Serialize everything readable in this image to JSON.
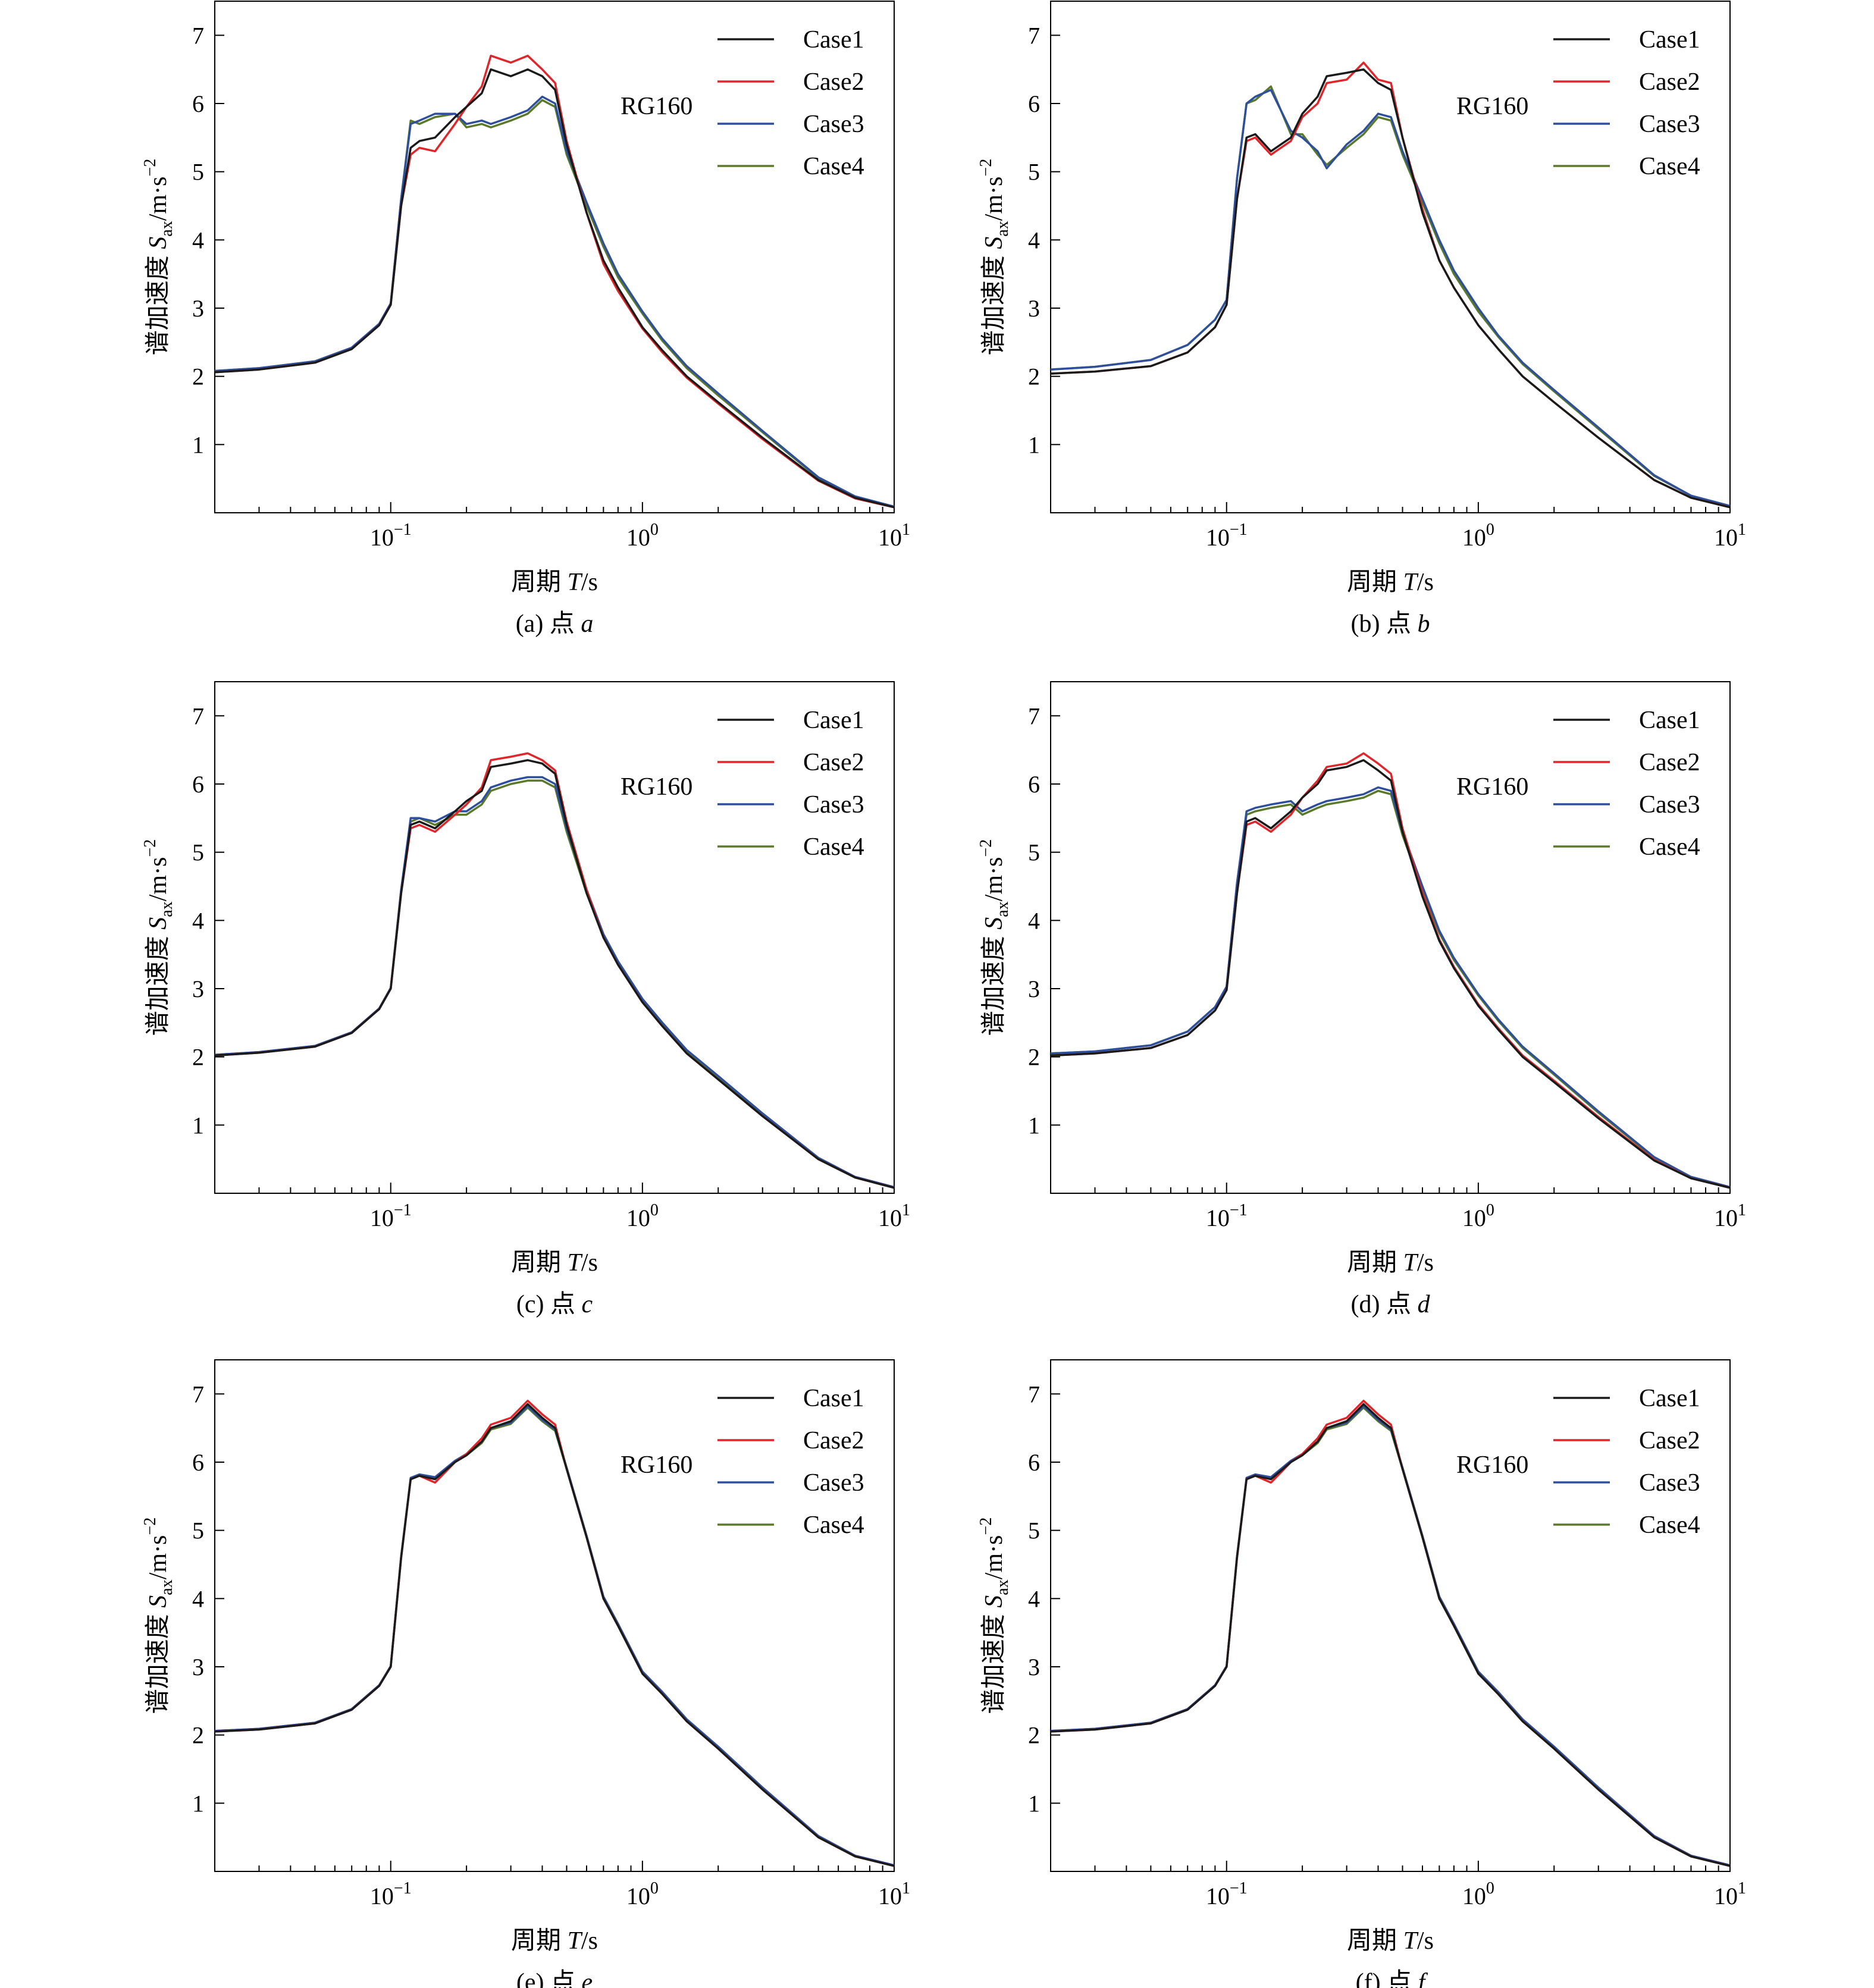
{
  "figure": {
    "ylabel_prefix": "谱加速度 ",
    "ylabel_symbol": "S",
    "ylabel_sub": "ax",
    "ylabel_unit": "/m·s",
    "ylabel_exp": "−2",
    "xlabel_prefix": "周期 ",
    "xlabel_symbol": "T",
    "xlabel_unit": "/s",
    "annotation": "RG160",
    "legend": [
      "Case1",
      "Case2",
      "Case3",
      "Case4"
    ],
    "colors": {
      "Case1": "#1a1a1a",
      "Case2": "#e0262b",
      "Case3": "#2e4f9e",
      "Case4": "#5a7a2a"
    },
    "yticks": [
      1,
      2,
      3,
      4,
      5,
      6,
      7
    ],
    "xticks": [
      {
        "base": "10",
        "exp": "−1",
        "value": 0.1
      },
      {
        "base": "10",
        "exp": "0",
        "value": 1
      },
      {
        "base": "10",
        "exp": "1",
        "value": 10
      }
    ]
  },
  "chart_data": [
    {
      "type": "line",
      "panel": "a",
      "caption_prefix": "(a) 点 ",
      "caption_letter": "a",
      "xscale": "log",
      "xlim": [
        0.02,
        10
      ],
      "ylim": [
        0,
        7.5
      ],
      "grid": false,
      "legend_position": "top-right",
      "x": [
        0.02,
        0.03,
        0.05,
        0.07,
        0.09,
        0.1,
        0.11,
        0.12,
        0.13,
        0.15,
        0.18,
        0.2,
        0.23,
        0.25,
        0.3,
        0.35,
        0.4,
        0.45,
        0.5,
        0.6,
        0.7,
        0.8,
        1.0,
        1.2,
        1.5,
        2.0,
        3.0,
        5.0,
        7.0,
        10.0
      ],
      "series": [
        {
          "name": "Case1",
          "values": [
            2.06,
            2.1,
            2.2,
            2.4,
            2.75,
            3.05,
            4.5,
            5.35,
            5.45,
            5.5,
            5.8,
            5.95,
            6.15,
            6.5,
            6.4,
            6.5,
            6.4,
            6.2,
            5.4,
            4.4,
            3.7,
            3.3,
            2.72,
            2.38,
            2.0,
            1.62,
            1.1,
            0.48,
            0.22,
            0.08
          ]
        },
        {
          "name": "Case2",
          "values": [
            2.06,
            2.1,
            2.2,
            2.4,
            2.75,
            3.05,
            4.5,
            5.25,
            5.35,
            5.3,
            5.7,
            5.95,
            6.25,
            6.7,
            6.6,
            6.7,
            6.5,
            6.3,
            5.45,
            4.4,
            3.65,
            3.25,
            2.7,
            2.35,
            1.98,
            1.6,
            1.08,
            0.47,
            0.21,
            0.08
          ]
        },
        {
          "name": "Case3",
          "values": [
            2.08,
            2.12,
            2.22,
            2.42,
            2.77,
            3.07,
            4.6,
            5.7,
            5.75,
            5.85,
            5.85,
            5.7,
            5.75,
            5.7,
            5.8,
            5.9,
            6.1,
            6.0,
            5.3,
            4.55,
            3.95,
            3.5,
            2.95,
            2.55,
            2.15,
            1.75,
            1.2,
            0.52,
            0.24,
            0.09
          ]
        },
        {
          "name": "Case4",
          "values": [
            2.08,
            2.12,
            2.22,
            2.42,
            2.77,
            3.07,
            4.6,
            5.75,
            5.7,
            5.8,
            5.85,
            5.65,
            5.7,
            5.65,
            5.75,
            5.85,
            6.05,
            5.95,
            5.25,
            4.5,
            3.9,
            3.45,
            2.92,
            2.52,
            2.12,
            1.72,
            1.18,
            0.51,
            0.23,
            0.09
          ]
        }
      ]
    },
    {
      "type": "line",
      "panel": "b",
      "caption_prefix": "(b) 点 ",
      "caption_letter": "b",
      "xscale": "log",
      "xlim": [
        0.02,
        10
      ],
      "ylim": [
        0,
        7.5
      ],
      "grid": false,
      "legend_position": "top-right",
      "x": [
        0.02,
        0.03,
        0.05,
        0.07,
        0.09,
        0.1,
        0.11,
        0.12,
        0.13,
        0.15,
        0.18,
        0.2,
        0.23,
        0.25,
        0.3,
        0.35,
        0.4,
        0.45,
        0.5,
        0.6,
        0.7,
        0.8,
        1.0,
        1.2,
        1.5,
        2.0,
        3.0,
        5.0,
        7.0,
        10.0
      ],
      "series": [
        {
          "name": "Case1",
          "values": [
            2.04,
            2.07,
            2.15,
            2.35,
            2.72,
            3.05,
            4.6,
            5.5,
            5.55,
            5.3,
            5.5,
            5.85,
            6.1,
            6.4,
            6.45,
            6.5,
            6.3,
            6.2,
            5.5,
            4.4,
            3.7,
            3.3,
            2.75,
            2.4,
            2.0,
            1.62,
            1.1,
            0.48,
            0.22,
            0.08
          ]
        },
        {
          "name": "Case2",
          "values": [
            2.04,
            2.07,
            2.15,
            2.35,
            2.72,
            3.05,
            4.6,
            5.45,
            5.5,
            5.25,
            5.45,
            5.8,
            6.0,
            6.3,
            6.35,
            6.6,
            6.35,
            6.3,
            5.5,
            4.45,
            3.7,
            3.3,
            2.75,
            2.4,
            2.0,
            1.62,
            1.1,
            0.48,
            0.22,
            0.08
          ]
        },
        {
          "name": "Case3",
          "values": [
            2.1,
            2.14,
            2.24,
            2.46,
            2.83,
            3.12,
            4.9,
            6.0,
            6.1,
            6.2,
            5.6,
            5.5,
            5.3,
            5.05,
            5.4,
            5.6,
            5.85,
            5.8,
            5.3,
            4.6,
            4.0,
            3.55,
            3.0,
            2.6,
            2.2,
            1.8,
            1.25,
            0.55,
            0.25,
            0.1
          ]
        },
        {
          "name": "Case4",
          "values": [
            2.1,
            2.14,
            2.24,
            2.46,
            2.83,
            3.12,
            4.9,
            6.0,
            6.05,
            6.25,
            5.55,
            5.55,
            5.25,
            5.1,
            5.35,
            5.55,
            5.8,
            5.75,
            5.25,
            4.55,
            3.95,
            3.5,
            2.95,
            2.58,
            2.18,
            1.78,
            1.23,
            0.54,
            0.25,
            0.1
          ]
        }
      ]
    },
    {
      "type": "line",
      "panel": "c",
      "caption_prefix": "(c) 点 ",
      "caption_letter": "c",
      "xscale": "log",
      "xlim": [
        0.02,
        10
      ],
      "ylim": [
        0,
        7.5
      ],
      "grid": false,
      "legend_position": "top-right",
      "x": [
        0.02,
        0.03,
        0.05,
        0.07,
        0.09,
        0.1,
        0.11,
        0.12,
        0.13,
        0.15,
        0.18,
        0.2,
        0.23,
        0.25,
        0.3,
        0.35,
        0.4,
        0.45,
        0.5,
        0.6,
        0.7,
        0.8,
        1.0,
        1.2,
        1.5,
        2.0,
        3.0,
        5.0,
        7.0,
        10.0
      ],
      "series": [
        {
          "name": "Case1",
          "values": [
            2.02,
            2.06,
            2.15,
            2.35,
            2.7,
            3.0,
            4.4,
            5.4,
            5.45,
            5.35,
            5.6,
            5.75,
            5.9,
            6.25,
            6.3,
            6.35,
            6.3,
            6.15,
            5.4,
            4.4,
            3.75,
            3.35,
            2.8,
            2.45,
            2.05,
            1.67,
            1.13,
            0.5,
            0.23,
            0.08
          ]
        },
        {
          "name": "Case2",
          "values": [
            2.02,
            2.06,
            2.15,
            2.35,
            2.7,
            3.0,
            4.4,
            5.35,
            5.4,
            5.3,
            5.55,
            5.7,
            5.95,
            6.35,
            6.4,
            6.45,
            6.35,
            6.2,
            5.45,
            4.45,
            3.75,
            3.35,
            2.8,
            2.45,
            2.05,
            1.67,
            1.13,
            0.5,
            0.23,
            0.08
          ]
        },
        {
          "name": "Case3",
          "values": [
            2.03,
            2.07,
            2.16,
            2.36,
            2.71,
            3.01,
            4.45,
            5.5,
            5.5,
            5.45,
            5.6,
            5.6,
            5.75,
            5.95,
            6.05,
            6.1,
            6.1,
            6.0,
            5.35,
            4.45,
            3.8,
            3.4,
            2.85,
            2.5,
            2.1,
            1.72,
            1.17,
            0.52,
            0.24,
            0.09
          ]
        },
        {
          "name": "Case4",
          "values": [
            2.03,
            2.07,
            2.16,
            2.36,
            2.71,
            3.01,
            4.45,
            5.45,
            5.5,
            5.4,
            5.55,
            5.55,
            5.7,
            5.9,
            6.0,
            6.05,
            6.05,
            5.95,
            5.3,
            4.4,
            3.78,
            3.38,
            2.83,
            2.48,
            2.08,
            1.7,
            1.15,
            0.51,
            0.23,
            0.09
          ]
        }
      ]
    },
    {
      "type": "line",
      "panel": "d",
      "caption_prefix": "(d) 点 ",
      "caption_letter": "d",
      "xscale": "log",
      "xlim": [
        0.02,
        10
      ],
      "ylim": [
        0,
        7.5
      ],
      "grid": false,
      "legend_position": "top-right",
      "x": [
        0.02,
        0.03,
        0.05,
        0.07,
        0.09,
        0.1,
        0.11,
        0.12,
        0.13,
        0.15,
        0.18,
        0.2,
        0.23,
        0.25,
        0.3,
        0.35,
        0.4,
        0.45,
        0.5,
        0.6,
        0.7,
        0.8,
        1.0,
        1.2,
        1.5,
        2.0,
        3.0,
        5.0,
        7.0,
        10.0
      ],
      "series": [
        {
          "name": "Case1",
          "values": [
            2.02,
            2.05,
            2.13,
            2.32,
            2.68,
            2.98,
            4.4,
            5.45,
            5.5,
            5.35,
            5.6,
            5.8,
            6.0,
            6.2,
            6.25,
            6.35,
            6.2,
            6.05,
            5.3,
            4.35,
            3.7,
            3.3,
            2.75,
            2.4,
            2.0,
            1.63,
            1.1,
            0.48,
            0.22,
            0.08
          ]
        },
        {
          "name": "Case2",
          "values": [
            2.02,
            2.05,
            2.13,
            2.32,
            2.68,
            2.98,
            4.4,
            5.4,
            5.45,
            5.3,
            5.55,
            5.8,
            6.05,
            6.25,
            6.3,
            6.45,
            6.3,
            6.15,
            5.35,
            4.4,
            3.72,
            3.32,
            2.77,
            2.42,
            2.02,
            1.65,
            1.12,
            0.49,
            0.22,
            0.08
          ]
        },
        {
          "name": "Case3",
          "values": [
            2.05,
            2.08,
            2.17,
            2.37,
            2.73,
            3.03,
            4.55,
            5.6,
            5.65,
            5.7,
            5.75,
            5.6,
            5.7,
            5.75,
            5.8,
            5.85,
            5.95,
            5.9,
            5.3,
            4.5,
            3.85,
            3.45,
            2.92,
            2.55,
            2.15,
            1.76,
            1.2,
            0.53,
            0.24,
            0.09
          ]
        },
        {
          "name": "Case4",
          "values": [
            2.05,
            2.08,
            2.17,
            2.37,
            2.73,
            3.03,
            4.55,
            5.55,
            5.6,
            5.65,
            5.7,
            5.55,
            5.65,
            5.7,
            5.75,
            5.8,
            5.9,
            5.85,
            5.25,
            4.45,
            3.82,
            3.42,
            2.9,
            2.53,
            2.13,
            1.74,
            1.18,
            0.52,
            0.24,
            0.09
          ]
        }
      ]
    },
    {
      "type": "line",
      "panel": "e",
      "caption_prefix": "(e) 点 ",
      "caption_letter": "e",
      "xscale": "log",
      "xlim": [
        0.02,
        10
      ],
      "ylim": [
        0,
        7.5
      ],
      "grid": false,
      "legend_position": "top-right",
      "x": [
        0.02,
        0.03,
        0.05,
        0.07,
        0.09,
        0.1,
        0.11,
        0.12,
        0.13,
        0.15,
        0.18,
        0.2,
        0.23,
        0.25,
        0.3,
        0.35,
        0.4,
        0.45,
        0.5,
        0.6,
        0.7,
        0.8,
        1.0,
        1.2,
        1.5,
        2.0,
        3.0,
        5.0,
        7.0,
        10.0
      ],
      "series": [
        {
          "name": "Case1",
          "values": [
            2.05,
            2.08,
            2.17,
            2.37,
            2.72,
            3.0,
            4.6,
            5.75,
            5.8,
            5.75,
            6.0,
            6.1,
            6.3,
            6.5,
            6.6,
            6.85,
            6.65,
            6.5,
            5.9,
            4.9,
            4.0,
            3.6,
            2.9,
            2.6,
            2.2,
            1.8,
            1.2,
            0.5,
            0.22,
            0.08
          ]
        },
        {
          "name": "Case2",
          "values": [
            2.05,
            2.08,
            2.17,
            2.37,
            2.72,
            3.0,
            4.6,
            5.75,
            5.8,
            5.7,
            6.0,
            6.12,
            6.35,
            6.55,
            6.65,
            6.9,
            6.7,
            6.55,
            5.9,
            4.9,
            4.0,
            3.6,
            2.9,
            2.6,
            2.2,
            1.8,
            1.2,
            0.5,
            0.22,
            0.08
          ]
        },
        {
          "name": "Case3",
          "values": [
            2.06,
            2.09,
            2.18,
            2.38,
            2.73,
            3.01,
            4.62,
            5.77,
            5.82,
            5.78,
            6.02,
            6.12,
            6.3,
            6.5,
            6.58,
            6.82,
            6.62,
            6.48,
            5.92,
            4.92,
            4.03,
            3.63,
            2.93,
            2.63,
            2.23,
            1.83,
            1.23,
            0.52,
            0.23,
            0.09
          ]
        },
        {
          "name": "Case4",
          "values": [
            2.06,
            2.09,
            2.18,
            2.38,
            2.73,
            3.01,
            4.62,
            5.76,
            5.81,
            5.77,
            6.01,
            6.1,
            6.28,
            6.48,
            6.56,
            6.8,
            6.6,
            6.46,
            5.9,
            4.9,
            4.01,
            3.61,
            2.91,
            2.61,
            2.21,
            1.81,
            1.21,
            0.51,
            0.22,
            0.08
          ]
        }
      ]
    },
    {
      "type": "line",
      "panel": "f",
      "caption_prefix": "(f) 点 ",
      "caption_letter": "f",
      "xscale": "log",
      "xlim": [
        0.02,
        10
      ],
      "ylim": [
        0,
        7.5
      ],
      "grid": false,
      "legend_position": "top-right",
      "x": [
        0.02,
        0.03,
        0.05,
        0.07,
        0.09,
        0.1,
        0.11,
        0.12,
        0.13,
        0.15,
        0.18,
        0.2,
        0.23,
        0.25,
        0.3,
        0.35,
        0.4,
        0.45,
        0.5,
        0.6,
        0.7,
        0.8,
        1.0,
        1.2,
        1.5,
        2.0,
        3.0,
        5.0,
        7.0,
        10.0
      ],
      "series": [
        {
          "name": "Case1",
          "values": [
            2.05,
            2.08,
            2.17,
            2.37,
            2.72,
            3.0,
            4.6,
            5.75,
            5.8,
            5.75,
            6.0,
            6.1,
            6.3,
            6.5,
            6.6,
            6.85,
            6.65,
            6.5,
            5.9,
            4.9,
            4.0,
            3.6,
            2.9,
            2.6,
            2.2,
            1.8,
            1.2,
            0.5,
            0.22,
            0.08
          ]
        },
        {
          "name": "Case2",
          "values": [
            2.05,
            2.08,
            2.17,
            2.37,
            2.72,
            3.0,
            4.6,
            5.75,
            5.8,
            5.7,
            6.0,
            6.12,
            6.35,
            6.55,
            6.65,
            6.9,
            6.7,
            6.55,
            5.9,
            4.9,
            4.0,
            3.6,
            2.9,
            2.6,
            2.2,
            1.8,
            1.2,
            0.5,
            0.22,
            0.08
          ]
        },
        {
          "name": "Case3",
          "values": [
            2.06,
            2.09,
            2.18,
            2.38,
            2.73,
            3.01,
            4.62,
            5.77,
            5.82,
            5.78,
            6.02,
            6.12,
            6.3,
            6.5,
            6.58,
            6.82,
            6.62,
            6.48,
            5.92,
            4.92,
            4.03,
            3.63,
            2.93,
            2.63,
            2.23,
            1.83,
            1.23,
            0.52,
            0.23,
            0.09
          ]
        },
        {
          "name": "Case4",
          "values": [
            2.06,
            2.09,
            2.18,
            2.38,
            2.73,
            3.01,
            4.62,
            5.76,
            5.81,
            5.77,
            6.01,
            6.1,
            6.28,
            6.48,
            6.56,
            6.8,
            6.6,
            6.46,
            5.9,
            4.9,
            4.01,
            3.61,
            2.91,
            2.61,
            2.21,
            1.81,
            1.21,
            0.51,
            0.22,
            0.08
          ]
        }
      ]
    }
  ]
}
